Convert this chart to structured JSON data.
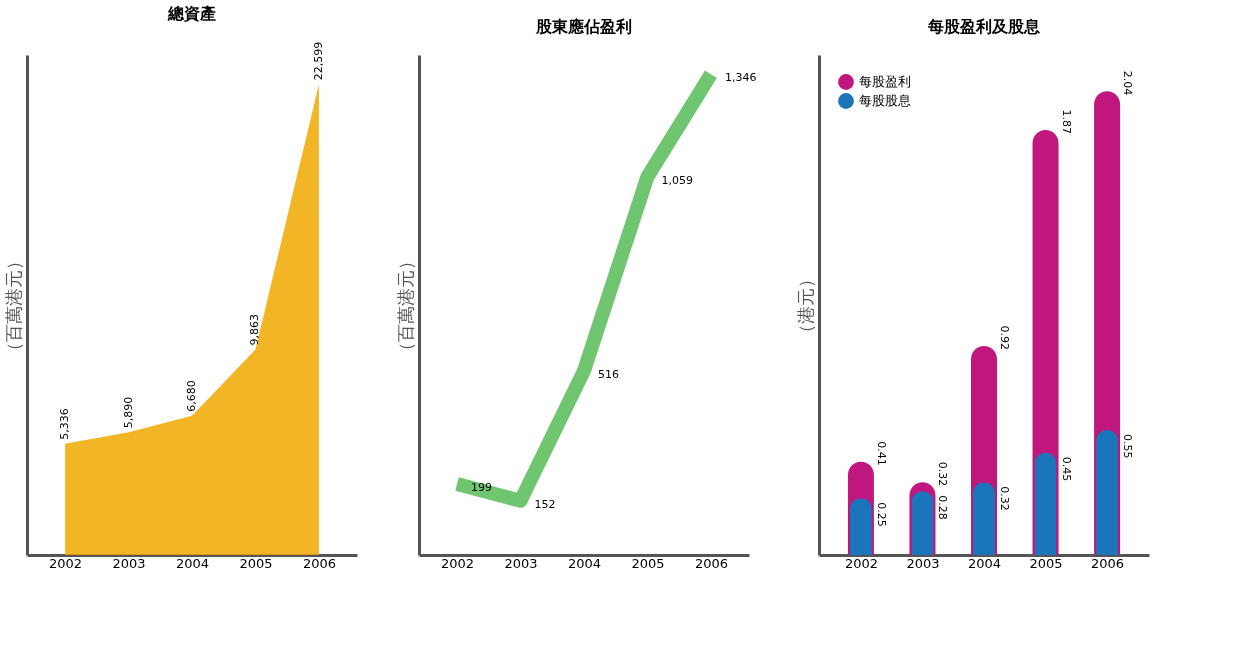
{
  "chart_data": [
    {
      "type": "area",
      "title": "總資產",
      "ylabel": "（百萬港元）",
      "categories": [
        "2002",
        "2003",
        "2004",
        "2005",
        "2006"
      ],
      "series": [
        {
          "color": "#f0a800",
          "values": [
            5336,
            5890,
            6680,
            9863,
            22599
          ],
          "value_labels": [
            "5,336",
            "5,890",
            "6,680",
            "9,863",
            "22,599"
          ]
        }
      ],
      "tick_labels": "x"
    },
    {
      "type": "line",
      "title": "股東應佔盈利",
      "ylabel": "（百萬港元）",
      "categories": [
        "2002",
        "2003",
        "2004",
        "2005",
        "2006"
      ],
      "series": [
        {
          "color": "#4cb84c",
          "values": [
            199,
            152,
            516,
            1059,
            1346
          ],
          "value_labels": [
            "199",
            "152",
            "516",
            "1,059",
            "1,346"
          ]
        }
      ],
      "tick_labels": "x"
    },
    {
      "type": "bar",
      "title": "每股盈利及股息",
      "ylabel": "（港元）",
      "categories": [
        "2002",
        "2003",
        "2004",
        "2005",
        "2006"
      ],
      "series": [
        {
          "name": "每股盈利",
          "color": "#c0177f",
          "values": [
            0.41,
            0.32,
            0.92,
            1.87,
            2.04
          ]
        },
        {
          "name": "每股股息",
          "color": "#1a75bb",
          "values": [
            0.25,
            0.28,
            0.32,
            0.45,
            0.55
          ]
        }
      ],
      "legend": "top left",
      "data_labels": true,
      "tick_labels": "x"
    }
  ]
}
